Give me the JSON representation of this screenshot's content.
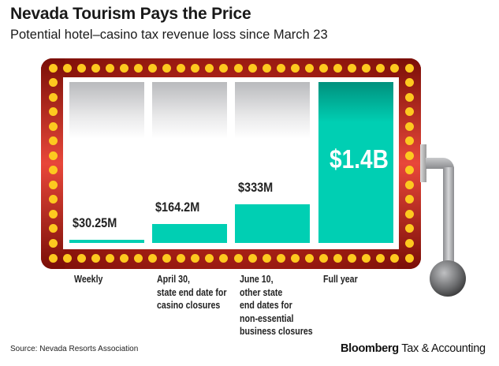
{
  "header": {
    "title": "Nevada Tourism Pays the Price",
    "subtitle": "Potential hotel–casino tax revenue loss since March 23"
  },
  "chart_data": {
    "type": "bar",
    "title": "Nevada Tourism Pays the Price",
    "subtitle": "Potential hotel–casino tax revenue loss since March 23",
    "categories": [
      "Weekly",
      "April 30,\nstate end date for\ncasino closures",
      "June 10,\nother state\nend dates for\nnon-essential\nbusiness closures",
      "Full year"
    ],
    "values": [
      30.25,
      164.2,
      333,
      1400
    ],
    "value_labels": [
      "$30.25M",
      "$164.2M",
      "$333M",
      "$1.4B"
    ],
    "unit": "millions USD",
    "ylim": [
      0,
      1400
    ],
    "xlabel": "",
    "ylabel": "",
    "grid": false,
    "colors": {
      "bar": "#00cfb3",
      "frame": "#b5261b",
      "lights": "#fdc91f"
    }
  },
  "footer": {
    "source": "Source: Nevada Resorts Association",
    "brand_bold": "Bloomberg",
    "brand_rest": " Tax & Accounting"
  }
}
